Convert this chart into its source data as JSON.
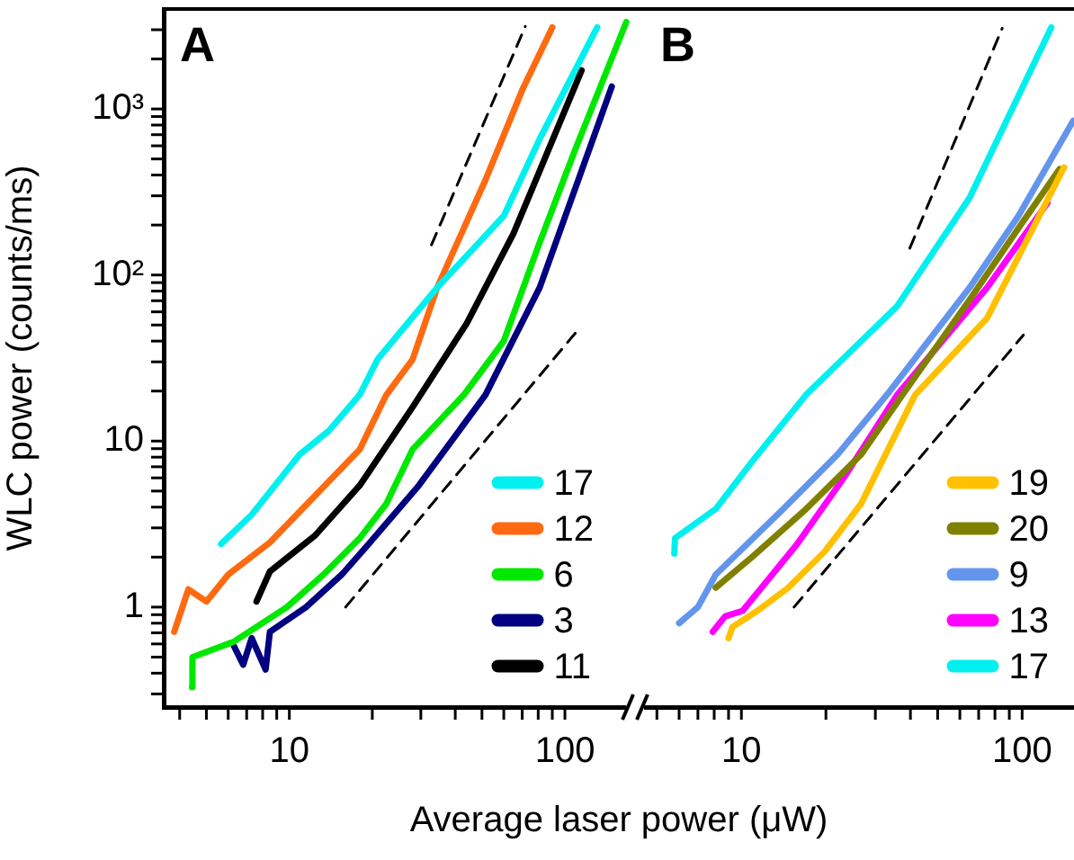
{
  "chart_data": [
    {
      "type": "line",
      "title": "A",
      "xlabel": "Average laser power (μW)",
      "ylabel": "WLC power (counts/ms)",
      "log": "xy",
      "marker": "none",
      "grid": false,
      "legend": "bottom right",
      "xlim": [
        3.5,
        177
      ],
      "xticks": [
        {
          "value": 4,
          "label": null
        },
        {
          "value": 5,
          "label": null
        },
        {
          "value": 6,
          "label": null
        },
        {
          "value": 7,
          "label": null
        },
        {
          "value": 8,
          "label": null
        },
        {
          "value": 9,
          "label": null
        },
        {
          "value": 10,
          "label": "10"
        },
        {
          "value": 20,
          "label": null
        },
        {
          "value": 30,
          "label": null
        },
        {
          "value": 40,
          "label": null
        },
        {
          "value": 50,
          "label": null
        },
        {
          "value": 60,
          "label": null
        },
        {
          "value": 70,
          "label": null
        },
        {
          "value": 80,
          "label": null
        },
        {
          "value": 90,
          "label": null
        },
        {
          "value": 100,
          "label": "100"
        }
      ],
      "ylim": [
        0.25,
        4000
      ],
      "yticks": [
        {
          "value": 0.3,
          "label": null
        },
        {
          "value": 0.4,
          "label": null
        },
        {
          "value": 0.5,
          "label": null
        },
        {
          "value": 0.6,
          "label": null
        },
        {
          "value": 0.7,
          "label": null
        },
        {
          "value": 0.8,
          "label": null
        },
        {
          "value": 0.9,
          "label": null
        },
        1,
        {
          "value": 2,
          "label": null
        },
        {
          "value": 3,
          "label": null
        },
        {
          "value": 4,
          "label": null
        },
        {
          "value": 5,
          "label": null
        },
        {
          "value": 6,
          "label": null
        },
        {
          "value": 7,
          "label": null
        },
        {
          "value": 8,
          "label": null
        },
        {
          "value": 9,
          "label": null
        },
        10,
        {
          "value": 20,
          "label": null
        },
        {
          "value": 30,
          "label": null
        },
        {
          "value": 40,
          "label": null
        },
        {
          "value": 50,
          "label": null
        },
        {
          "value": 60,
          "label": null
        },
        {
          "value": 70,
          "label": null
        },
        {
          "value": 80,
          "label": null
        },
        {
          "value": 90,
          "label": null
        },
        {
          "value": 100,
          "label": "10²"
        },
        {
          "value": 200,
          "label": null
        },
        {
          "value": 300,
          "label": null
        },
        {
          "value": 400,
          "label": null
        },
        {
          "value": 500,
          "label": null
        },
        {
          "value": 600,
          "label": null
        },
        {
          "value": 700,
          "label": null
        },
        {
          "value": 800,
          "label": null
        },
        {
          "value": 900,
          "label": null
        },
        {
          "value": 1000,
          "label": "10³"
        },
        {
          "value": 2000,
          "label": null
        },
        {
          "value": 3000,
          "label": null
        }
      ],
      "series": [
        {
          "name": "17",
          "color": "#00f0f0",
          "x": [
            5.65,
            7.3,
            10.9,
            13.9,
            18,
            20.9,
            34.4,
            60,
            81,
            131
          ],
          "values": [
            2.4,
            3.6,
            8.3,
            11.5,
            19,
            31,
            84,
            227,
            660,
            3100
          ]
        },
        {
          "name": "12",
          "color": "#ff6a10",
          "x": [
            3.82,
            4.3,
            5.0,
            6.0,
            8.5,
            18,
            22.5,
            28,
            34.4,
            51.5,
            70,
            90
          ],
          "values": [
            0.71,
            1.28,
            1.08,
            1.57,
            2.45,
            8.9,
            19,
            31,
            84,
            374,
            1300,
            3100
          ]
        },
        {
          "name": "6",
          "color": "#00e800",
          "x": [
            4.43,
            4.45,
            6.3,
            9.8,
            13.3,
            18,
            22.5,
            28,
            43,
            60,
            81,
            109,
            167
          ],
          "values": [
            0.33,
            0.5,
            0.62,
            1.0,
            1.57,
            2.6,
            4.2,
            8.9,
            19,
            40,
            157,
            570,
            3340
          ]
        },
        {
          "name": "3",
          "color": "#000080",
          "x": [
            6.3,
            6.8,
            7.3,
            8.2,
            8.5,
            11.5,
            15.5,
            19.4,
            29.5,
            51.5,
            81,
            106,
            148
          ],
          "values": [
            0.58,
            0.45,
            0.65,
            0.42,
            0.71,
            1.0,
            1.57,
            2.4,
            5.4,
            19,
            84,
            292,
            1365
          ]
        },
        {
          "name": "11",
          "color": "#000000",
          "x": [
            7.6,
            8.5,
            12.4,
            18,
            28,
            44,
            65,
            81,
            115
          ],
          "values": [
            1.08,
            1.64,
            2.7,
            5.4,
            16,
            51,
            177,
            424,
            1710
          ]
        },
        {
          "type": "line",
          "color": "#000000",
          "line_style": "dashed",
          "x": [
            32.8,
            71.8
          ],
          "values": [
            152,
            3140
          ]
        },
        {
          "type": "line",
          "color": "#000000",
          "line_style": "dashed",
          "x": [
            16,
            109
          ],
          "values": [
            1.0,
            44.6
          ]
        }
      ]
    },
    {
      "type": "line",
      "title": "B",
      "log": "xy",
      "marker": "none",
      "grid": false,
      "legend": "bottom right",
      "tick_labels": "x",
      "xlim": [
        4.5,
        153
      ],
      "xticks": [
        {
          "value": 5,
          "label": null
        },
        {
          "value": 6,
          "label": null
        },
        {
          "value": 7,
          "label": null
        },
        {
          "value": 8,
          "label": null
        },
        {
          "value": 9,
          "label": null
        },
        {
          "value": 10,
          "label": "10"
        },
        {
          "value": 20,
          "label": null
        },
        {
          "value": 30,
          "label": null
        },
        {
          "value": 40,
          "label": null
        },
        {
          "value": 50,
          "label": null
        },
        {
          "value": 60,
          "label": null
        },
        {
          "value": 70,
          "label": null
        },
        {
          "value": 80,
          "label": null
        },
        {
          "value": 90,
          "label": null
        },
        {
          "value": 100,
          "label": "100"
        }
      ],
      "ylim": [
        0.25,
        4000
      ],
      "yticks": [
        1,
        10,
        100,
        1000
      ],
      "series": [
        {
          "name": "19",
          "color": "#ffc000",
          "x": [
            9.0,
            9.3,
            11.4,
            14.7,
            19.8,
            26.7,
            41.6,
            75,
            141
          ],
          "values": [
            0.65,
            0.76,
            0.95,
            1.31,
            2.16,
            4.2,
            19,
            55,
            445
          ]
        },
        {
          "name": "20",
          "color": "#808000",
          "x": [
            8.1,
            10.9,
            17,
            26.7,
            37.5,
            65,
            97,
            136
          ],
          "values": [
            1.31,
            2.0,
            3.9,
            8.3,
            19,
            71,
            191,
            435
          ]
        },
        {
          "name": "9",
          "color": "#6495ed",
          "x": [
            6.0,
            7.0,
            8.1,
            14.1,
            22,
            33,
            65,
            97,
            152
          ],
          "values": [
            0.8,
            1.0,
            1.57,
            3.9,
            8.3,
            19,
            84,
            227,
            850
          ]
        },
        {
          "name": "13",
          "color": "#ff00ff",
          "x": [
            7.9,
            8.75,
            10.1,
            11.8,
            15.8,
            23,
            35.9,
            75,
            123
          ],
          "values": [
            0.71,
            0.88,
            0.95,
            1.31,
            2.4,
            5.9,
            19,
            84,
            271
          ]
        },
        {
          "name": "17",
          "color": "#00f0f0",
          "x": [
            5.77,
            5.8,
            8.1,
            10.9,
            17,
            35.9,
            65,
            127
          ],
          "values": [
            2.1,
            2.6,
            3.9,
            7.5,
            19,
            65,
            292,
            3100
          ]
        },
        {
          "type": "line",
          "color": "#000000",
          "line_style": "dashed",
          "x": [
            39.8,
            84.9
          ],
          "values": [
            145,
            3060
          ]
        },
        {
          "type": "line",
          "color": "#000000",
          "line_style": "dashed",
          "x": [
            15.4,
            101
          ],
          "values": [
            1.0,
            43.5
          ]
        }
      ]
    }
  ]
}
